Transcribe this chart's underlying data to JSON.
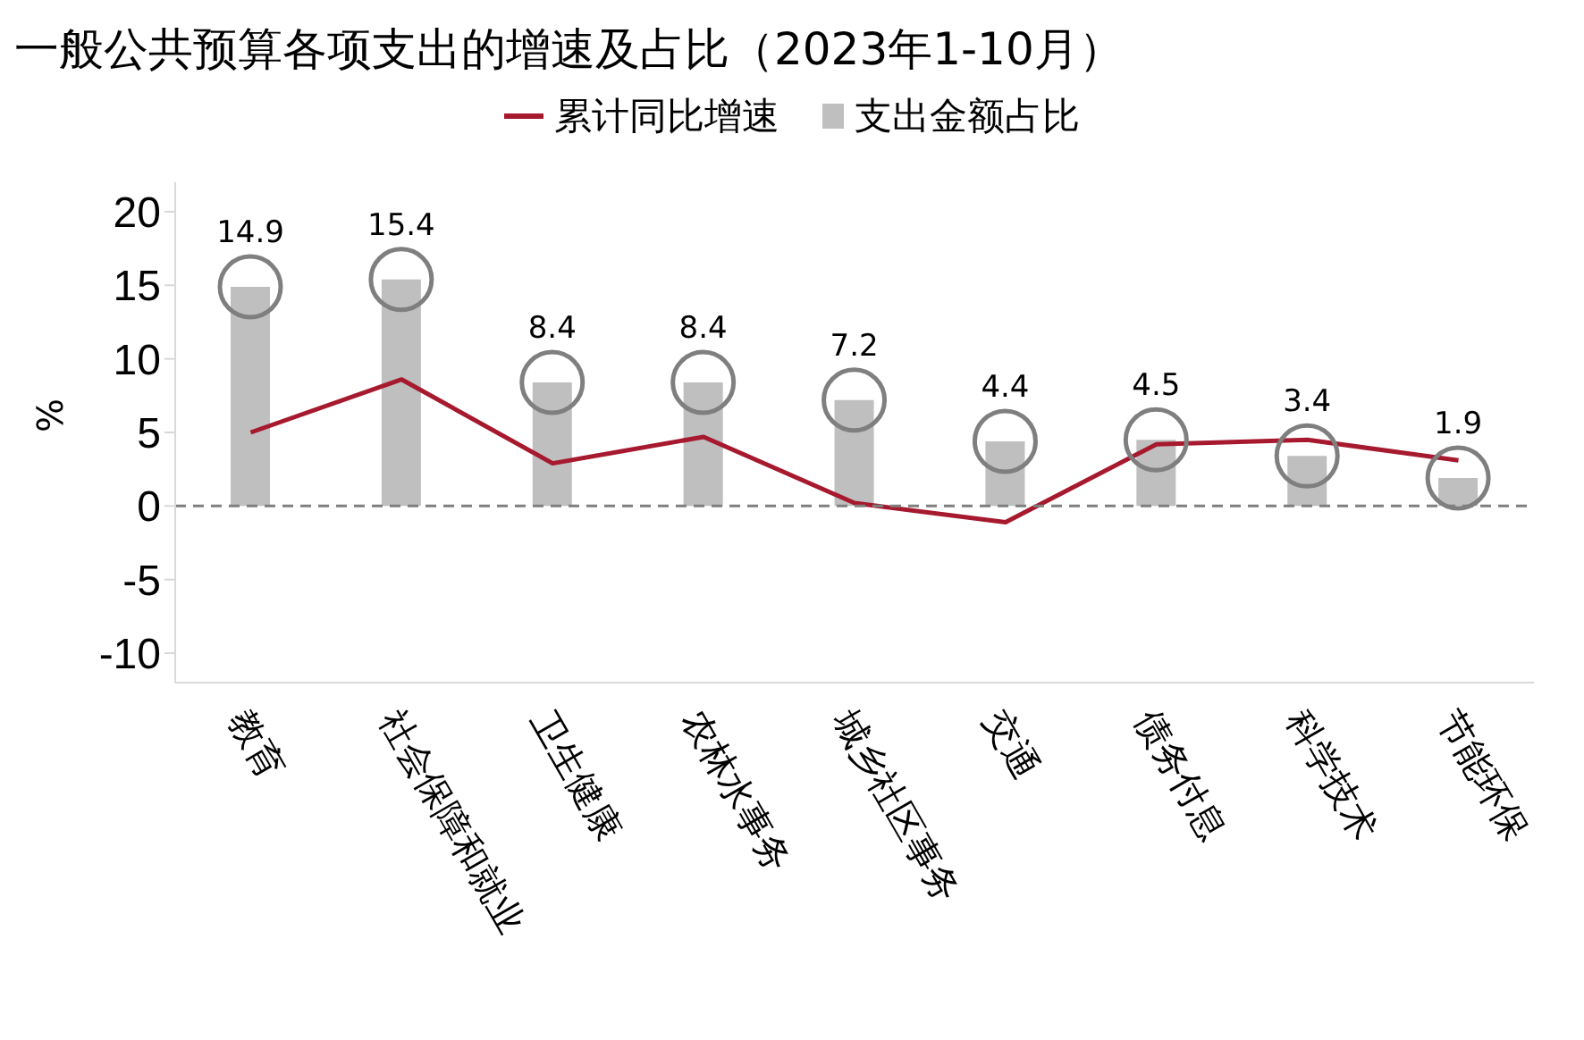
{
  "chart_data": {
    "type": "bar",
    "title": "一般公共预算各项支出的增速及占比（2023年1-10月）",
    "ylabel": "%",
    "categories": [
      "教育",
      "社会保障和就业",
      "卫生健康",
      "农林水事务",
      "城乡社区事务",
      "交通",
      "债务付息",
      "科学技术",
      "节能环保"
    ],
    "series": [
      {
        "name": "累计同比增速",
        "type": "line",
        "color": "#a6192e",
        "values": [
          5.0,
          8.6,
          2.9,
          4.7,
          0.2,
          -1.1,
          4.2,
          4.5,
          3.1
        ]
      },
      {
        "name": "支出金额占比",
        "color": "#bfbfbf",
        "values": [
          14.9,
          15.4,
          8.4,
          8.4,
          7.2,
          4.4,
          4.5,
          3.4,
          1.9
        ],
        "value_labels": [
          "14.9",
          "15.4",
          "8.4",
          "8.4",
          "7.2",
          "4.4",
          "4.5",
          "3.4",
          "1.9"
        ]
      }
    ],
    "ylim": [
      -12,
      22
    ],
    "yticks": [
      -10,
      -5,
      0,
      5,
      10,
      15,
      20
    ],
    "grid": false,
    "legend": "top",
    "marker": "none",
    "ref_lines": [
      {
        "axis": "y",
        "value": 0,
        "color": "#7f7f7f",
        "line_style": "dashed"
      }
    ]
  }
}
